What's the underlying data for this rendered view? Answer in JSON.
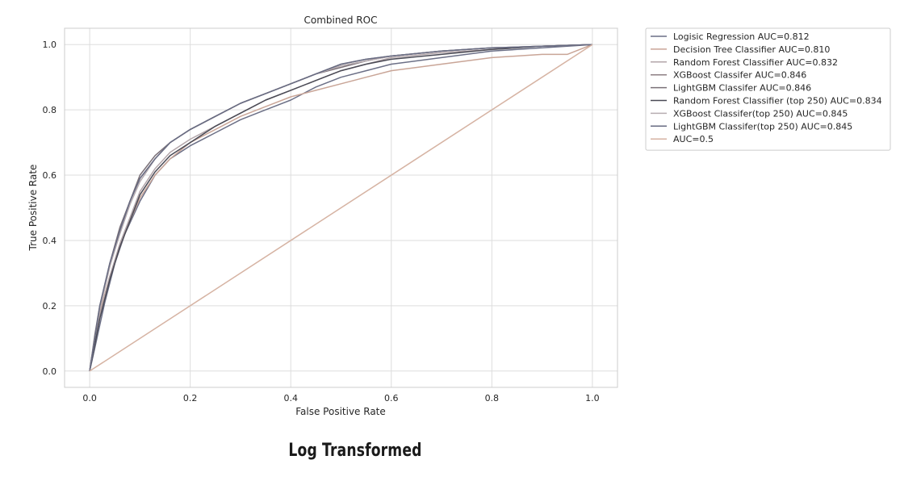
{
  "chart_data": {
    "type": "line",
    "title": "Combined ROC",
    "xlabel": "False Positive Rate",
    "ylabel": "True Positive Rate",
    "xlim": [
      -0.05,
      1.05
    ],
    "ylim": [
      -0.05,
      1.05
    ],
    "xticks": [
      "0.0",
      "0.2",
      "0.4",
      "0.6",
      "0.8",
      "1.0"
    ],
    "yticks": [
      "0.0",
      "0.2",
      "0.4",
      "0.6",
      "0.8",
      "1.0"
    ],
    "grid": true,
    "legend_position": "outside upper right",
    "series": [
      {
        "name": "Logisic Regression AUC=0.812",
        "color": "#6b6f86",
        "x": [
          0,
          0.01,
          0.02,
          0.03,
          0.05,
          0.07,
          0.1,
          0.13,
          0.16,
          0.2,
          0.25,
          0.3,
          0.35,
          0.4,
          0.45,
          0.5,
          0.55,
          0.6,
          0.7,
          0.8,
          0.9,
          1.0
        ],
        "y": [
          0,
          0.07,
          0.14,
          0.21,
          0.33,
          0.42,
          0.52,
          0.6,
          0.65,
          0.69,
          0.73,
          0.77,
          0.8,
          0.83,
          0.87,
          0.9,
          0.92,
          0.94,
          0.96,
          0.98,
          0.99,
          1.0
        ]
      },
      {
        "name": "Decision Tree Classifier AUC=0.810",
        "color": "#c9a597",
        "x": [
          0,
          0.01,
          0.02,
          0.04,
          0.06,
          0.08,
          0.1,
          0.13,
          0.16,
          0.2,
          0.25,
          0.3,
          0.35,
          0.4,
          0.45,
          0.5,
          0.55,
          0.6,
          0.7,
          0.8,
          0.9,
          0.95,
          1.0
        ],
        "y": [
          0,
          0.1,
          0.18,
          0.29,
          0.38,
          0.46,
          0.53,
          0.6,
          0.65,
          0.7,
          0.74,
          0.78,
          0.81,
          0.84,
          0.86,
          0.88,
          0.9,
          0.92,
          0.94,
          0.96,
          0.97,
          0.97,
          1.0
        ]
      },
      {
        "name": "Random Forest Classifier AUC=0.832",
        "color": "#b3a6aa",
        "x": [
          0,
          0.01,
          0.02,
          0.04,
          0.06,
          0.08,
          0.1,
          0.13,
          0.16,
          0.2,
          0.25,
          0.3,
          0.35,
          0.4,
          0.45,
          0.5,
          0.55,
          0.6,
          0.7,
          0.8,
          0.9,
          1.0
        ],
        "y": [
          0,
          0.09,
          0.17,
          0.29,
          0.39,
          0.47,
          0.55,
          0.62,
          0.67,
          0.71,
          0.75,
          0.79,
          0.83,
          0.86,
          0.89,
          0.92,
          0.94,
          0.96,
          0.975,
          0.985,
          0.995,
          1.0
        ]
      },
      {
        "name": "XGBoost Classifer AUC=0.846",
        "color": "#8e7f84",
        "x": [
          0,
          0.01,
          0.02,
          0.04,
          0.06,
          0.08,
          0.1,
          0.13,
          0.16,
          0.2,
          0.25,
          0.3,
          0.35,
          0.4,
          0.45,
          0.5,
          0.55,
          0.6,
          0.7,
          0.8,
          0.9,
          1.0
        ],
        "y": [
          0,
          0.1,
          0.19,
          0.32,
          0.43,
          0.52,
          0.59,
          0.65,
          0.7,
          0.74,
          0.78,
          0.82,
          0.85,
          0.88,
          0.91,
          0.94,
          0.955,
          0.965,
          0.98,
          0.99,
          0.995,
          1.0
        ]
      },
      {
        "name": "LightGBM Classifer AUC=0.846",
        "color": "#7a7077",
        "x": [
          0,
          0.01,
          0.02,
          0.04,
          0.06,
          0.08,
          0.1,
          0.13,
          0.16,
          0.2,
          0.25,
          0.3,
          0.35,
          0.4,
          0.45,
          0.5,
          0.55,
          0.6,
          0.7,
          0.8,
          0.9,
          1.0
        ],
        "y": [
          0,
          0.11,
          0.2,
          0.33,
          0.44,
          0.52,
          0.6,
          0.66,
          0.7,
          0.74,
          0.78,
          0.82,
          0.85,
          0.88,
          0.91,
          0.93,
          0.95,
          0.965,
          0.98,
          0.99,
          0.995,
          1.0
        ]
      },
      {
        "name": "Random Forest Classifier (top 250) AUC=0.834",
        "color": "#4a4a55",
        "x": [
          0,
          0.01,
          0.02,
          0.04,
          0.06,
          0.08,
          0.1,
          0.13,
          0.16,
          0.2,
          0.25,
          0.3,
          0.35,
          0.4,
          0.45,
          0.5,
          0.55,
          0.6,
          0.7,
          0.8,
          0.9,
          1.0
        ],
        "y": [
          0,
          0.08,
          0.16,
          0.28,
          0.38,
          0.46,
          0.54,
          0.61,
          0.66,
          0.7,
          0.75,
          0.79,
          0.83,
          0.86,
          0.89,
          0.92,
          0.94,
          0.955,
          0.97,
          0.985,
          0.995,
          1.0
        ]
      },
      {
        "name": "XGBoost Classifer(top 250) AUC=0.845",
        "color": "#b7adb1",
        "x": [
          0,
          0.01,
          0.02,
          0.04,
          0.06,
          0.08,
          0.1,
          0.13,
          0.16,
          0.2,
          0.25,
          0.3,
          0.35,
          0.4,
          0.45,
          0.5,
          0.55,
          0.6,
          0.7,
          0.8,
          0.9,
          1.0
        ],
        "y": [
          0,
          0.1,
          0.19,
          0.32,
          0.42,
          0.51,
          0.58,
          0.65,
          0.7,
          0.74,
          0.78,
          0.82,
          0.85,
          0.88,
          0.91,
          0.935,
          0.95,
          0.965,
          0.98,
          0.99,
          0.995,
          1.0
        ]
      },
      {
        "name": "LightGBM Classifer(top 250) AUC=0.845",
        "color": "#676b82",
        "x": [
          0,
          0.01,
          0.02,
          0.04,
          0.06,
          0.08,
          0.1,
          0.13,
          0.16,
          0.2,
          0.25,
          0.3,
          0.35,
          0.4,
          0.45,
          0.5,
          0.55,
          0.6,
          0.7,
          0.8,
          0.9,
          1.0
        ],
        "y": [
          0,
          0.1,
          0.2,
          0.33,
          0.43,
          0.52,
          0.59,
          0.65,
          0.7,
          0.74,
          0.78,
          0.82,
          0.85,
          0.88,
          0.91,
          0.94,
          0.955,
          0.965,
          0.98,
          0.99,
          0.995,
          1.0
        ]
      },
      {
        "name": "AUC=0.5",
        "color": "#d6b3a3",
        "x": [
          0,
          1.0
        ],
        "y": [
          0,
          1.0
        ]
      }
    ]
  },
  "caption": "Log Transformed"
}
